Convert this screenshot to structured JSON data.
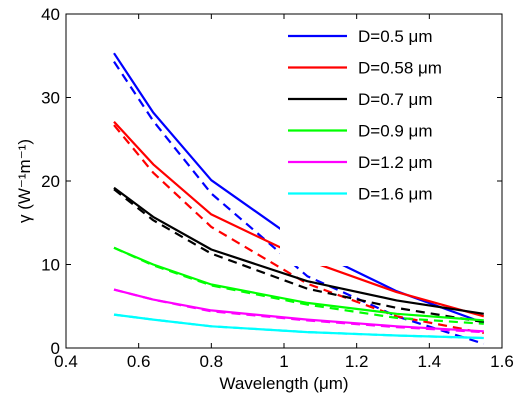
{
  "chart_data": {
    "type": "line",
    "xlabel": "Wavelength (μm)",
    "ylabel": "γ (W⁻¹m⁻¹)",
    "xlim": [
      0.4,
      1.6
    ],
    "ylim": [
      0,
      40
    ],
    "xticks": [
      "0.4",
      "0.6",
      "0.8",
      "1",
      "1.2",
      "1.4",
      "1.6"
    ],
    "yticks": [
      "0",
      "10",
      "20",
      "30",
      "40"
    ],
    "grid": false,
    "legend_position": "top-right",
    "series": [
      {
        "name": "D=0.5 μm",
        "color": "#0000ff",
        "solid": {
          "x": [
            0.532,
            0.64,
            0.8,
            1.064,
            1.31,
            1.55
          ],
          "y": [
            35.3,
            28.2,
            20.1,
            12.0,
            6.8,
            3.0
          ]
        },
        "dashed": {
          "x": [
            0.532,
            0.64,
            0.8,
            1.064,
            1.31,
            1.55
          ],
          "y": [
            34.3,
            27.2,
            18.5,
            8.6,
            3.8,
            0.5
          ]
        }
      },
      {
        "name": "D=0.58 μm",
        "color": "#ff0000",
        "solid": {
          "x": [
            0.532,
            0.64,
            0.8,
            1.064,
            1.31,
            1.55
          ],
          "y": [
            27.1,
            22.0,
            16.0,
            10.5,
            6.7,
            3.8
          ]
        },
        "dashed": {
          "x": [
            0.532,
            0.64,
            0.8,
            1.064,
            1.31,
            1.55
          ],
          "y": [
            26.7,
            21.0,
            14.5,
            7.7,
            3.8,
            1.8
          ]
        }
      },
      {
        "name": "D=0.7 μm",
        "color": "#000000",
        "solid": {
          "x": [
            0.532,
            0.64,
            0.8,
            1.064,
            1.31,
            1.55
          ],
          "y": [
            19.2,
            15.7,
            11.8,
            8.0,
            5.7,
            4.1
          ]
        },
        "dashed": {
          "x": [
            0.532,
            0.64,
            0.8,
            1.064,
            1.31,
            1.55
          ],
          "y": [
            19.0,
            15.3,
            11.3,
            7.1,
            4.8,
            3.1
          ]
        }
      },
      {
        "name": "D=0.9 μm",
        "color": "#00ff00",
        "solid": {
          "x": [
            0.532,
            0.64,
            0.8,
            1.064,
            1.31,
            1.55
          ],
          "y": [
            12.0,
            10.0,
            7.6,
            5.4,
            4.1,
            3.3
          ]
        },
        "dashed": {
          "x": [
            0.532,
            0.64,
            0.8,
            1.064,
            1.31,
            1.55
          ],
          "y": [
            12.0,
            9.9,
            7.5,
            5.2,
            3.6,
            2.9
          ]
        }
      },
      {
        "name": "D=1.2 μm",
        "color": "#ff00ff",
        "solid": {
          "x": [
            0.532,
            0.64,
            0.8,
            1.064,
            1.31,
            1.55
          ],
          "y": [
            7.0,
            5.8,
            4.5,
            3.4,
            2.6,
            2.0
          ]
        },
        "dashed": {
          "x": [
            0.532,
            0.64,
            0.8,
            1.064,
            1.31,
            1.55
          ],
          "y": [
            7.0,
            5.8,
            4.4,
            3.3,
            2.5,
            1.9
          ]
        }
      },
      {
        "name": "D=1.6 μm",
        "color": "#00ffff",
        "solid": {
          "x": [
            0.532,
            0.64,
            0.8,
            1.064,
            1.31,
            1.55
          ],
          "y": [
            4.0,
            3.4,
            2.6,
            1.9,
            1.5,
            1.2
          ]
        },
        "dashed": {
          "x": [
            0.532,
            0.64,
            0.8,
            1.064,
            1.31,
            1.55
          ],
          "y": [
            4.0,
            3.4,
            2.6,
            1.9,
            1.5,
            1.2
          ]
        }
      }
    ]
  }
}
